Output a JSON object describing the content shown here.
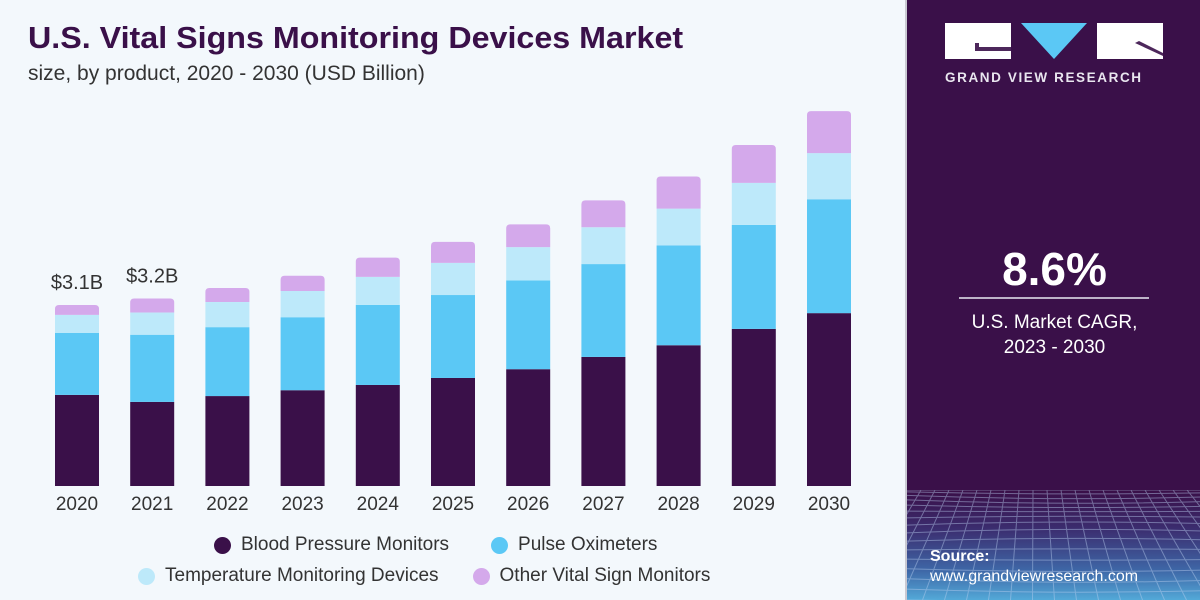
{
  "header": {
    "title": "U.S. Vital Signs Monitoring Devices Market",
    "subtitle": "size, by product, 2020 - 2030 (USD Billion)"
  },
  "chart_data": {
    "type": "bar",
    "stacked": true,
    "title": "U.S. Vital Signs Monitoring Devices Market",
    "subtitle": "size, by product, 2020 - 2030 (USD Billion)",
    "xlabel": "",
    "ylabel": "USD Billion",
    "ylim": [
      0,
      6.5
    ],
    "grid": false,
    "legend_position": "bottom",
    "categories": [
      "2020",
      "2021",
      "2022",
      "2023",
      "2024",
      "2025",
      "2026",
      "2027",
      "2028",
      "2029",
      "2030"
    ],
    "series": [
      {
        "name": "Blood Pressure Monitors",
        "color": "#3a1049",
        "values": [
          1.56,
          1.44,
          1.54,
          1.64,
          1.73,
          1.85,
          2.0,
          2.21,
          2.41,
          2.69,
          2.96
        ]
      },
      {
        "name": "Pulse Oximeters",
        "color": "#5bc8f5",
        "values": [
          1.06,
          1.15,
          1.18,
          1.25,
          1.37,
          1.42,
          1.52,
          1.59,
          1.71,
          1.78,
          1.95
        ]
      },
      {
        "name": "Temperature Monitoring Devices",
        "color": "#bde9fa",
        "values": [
          0.31,
          0.38,
          0.43,
          0.45,
          0.48,
          0.55,
          0.57,
          0.63,
          0.63,
          0.72,
          0.79
        ]
      },
      {
        "name": "Other Vital Sign Monitors",
        "color": "#d4a9eb",
        "values": [
          0.17,
          0.24,
          0.24,
          0.26,
          0.33,
          0.36,
          0.39,
          0.46,
          0.55,
          0.65,
          0.72
        ]
      }
    ],
    "annotations": [
      {
        "category": "2020",
        "text": "$3.1B"
      },
      {
        "category": "2021",
        "text": "$3.2B"
      }
    ]
  },
  "legend": {
    "items": [
      {
        "label": "Blood Pressure Monitors",
        "color": "#3a1049"
      },
      {
        "label": "Pulse Oximeters",
        "color": "#5bc8f5"
      },
      {
        "label": "Temperature Monitoring Devices",
        "color": "#bde9fa"
      },
      {
        "label": "Other Vital Sign Monitors",
        "color": "#d4a9eb"
      }
    ]
  },
  "sidebar": {
    "brand": "GRAND VIEW RESEARCH",
    "logo_colors": {
      "blocks": "#ffffff",
      "triangle": "#5bc8f5"
    },
    "cagr_value": "8.6%",
    "cagr_caption_line1": "U.S. Market CAGR,",
    "cagr_caption_line2": "2023 - 2030",
    "source_label": "Source:",
    "source_url": "www.grandviewresearch.com"
  }
}
